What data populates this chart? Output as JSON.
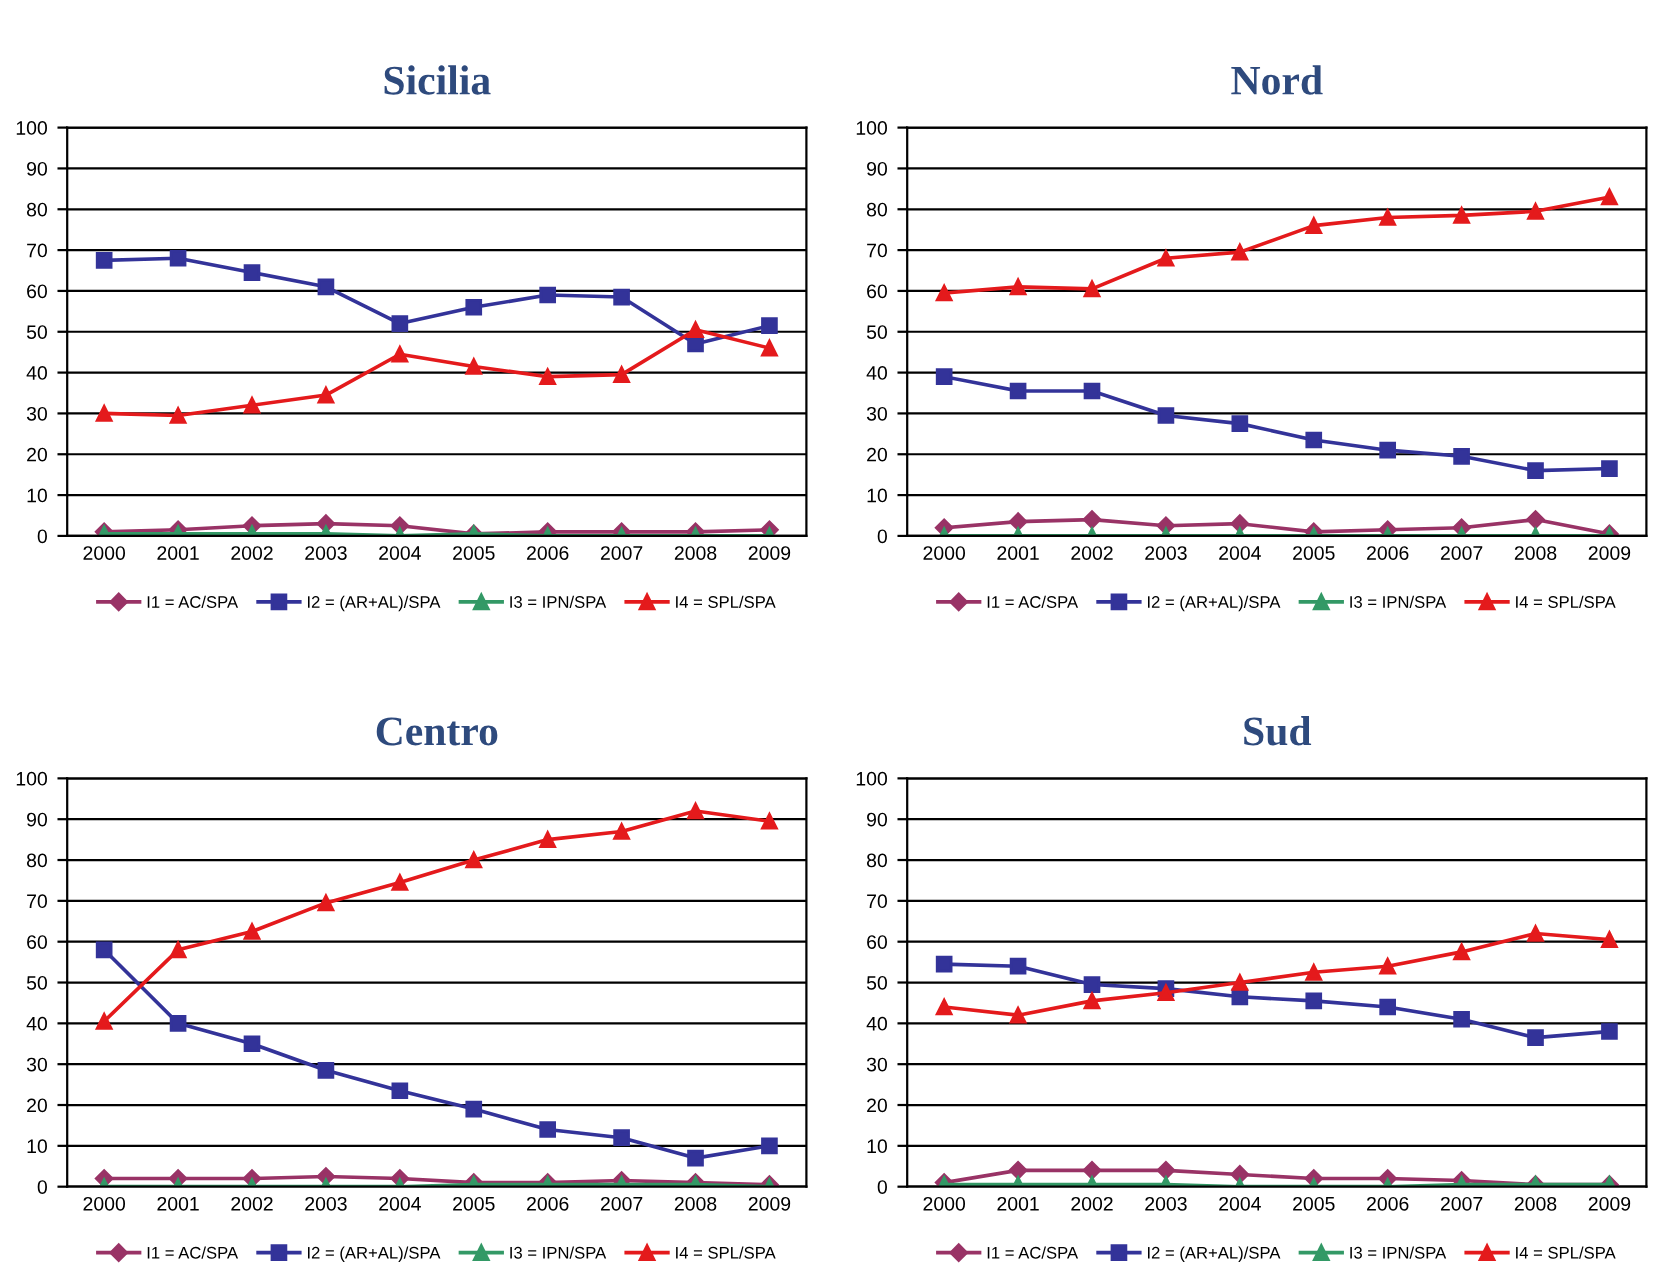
{
  "chart_data": [
    {
      "type": "line",
      "title": "Sicilia",
      "categories": [
        "2000",
        "2001",
        "2002",
        "2003",
        "2004",
        "2005",
        "2006",
        "2007",
        "2008",
        "2009"
      ],
      "ylim": [
        0,
        100
      ],
      "yticks": [
        0,
        10,
        20,
        30,
        40,
        50,
        60,
        70,
        80,
        90,
        100
      ],
      "grid": "y",
      "legend": "bottom",
      "series": [
        {
          "name": "I1 = AC/SPA",
          "color": "#993366",
          "marker": "diamond",
          "values": [
            1,
            1.5,
            2.5,
            3,
            2.5,
            0.5,
            1,
            1,
            1,
            1.5
          ]
        },
        {
          "name": "I2 = (AR+AL)/SPA",
          "color": "#333399",
          "marker": "square",
          "values": [
            67.5,
            68,
            64.5,
            61,
            52,
            56,
            59,
            58.5,
            47,
            51.5
          ]
        },
        {
          "name": "I3 = IPN/SPA",
          "color": "#339966",
          "marker": "triangle",
          "values": [
            0.5,
            0.5,
            0.5,
            0.5,
            0,
            0.5,
            0,
            0,
            0,
            0
          ]
        },
        {
          "name": "I4 = SPL/SPA",
          "color": "#e41a1c",
          "marker": "triangle",
          "values": [
            30,
            29.5,
            32,
            34.5,
            44.5,
            41.5,
            39,
            39.5,
            50.5,
            46
          ]
        }
      ]
    },
    {
      "type": "line",
      "title": "Nord",
      "categories": [
        "2000",
        "2001",
        "2002",
        "2003",
        "2004",
        "2005",
        "2006",
        "2007",
        "2008",
        "2009"
      ],
      "ylim": [
        0,
        100
      ],
      "yticks": [
        0,
        10,
        20,
        30,
        40,
        50,
        60,
        70,
        80,
        90,
        100
      ],
      "grid": "y",
      "legend": "bottom",
      "series": [
        {
          "name": "I1 = AC/SPA",
          "color": "#993366",
          "marker": "diamond",
          "values": [
            2,
            3.5,
            4,
            2.5,
            3,
            1,
            1.5,
            2,
            4,
            0.5
          ]
        },
        {
          "name": "I2 = (AR+AL)/SPA",
          "color": "#333399",
          "marker": "square",
          "values": [
            39,
            35.5,
            35.5,
            29.5,
            27.5,
            23.5,
            21,
            19.5,
            16,
            16.5
          ]
        },
        {
          "name": "I3 = IPN/SPA",
          "color": "#339966",
          "marker": "triangle",
          "values": [
            0,
            0,
            0,
            0,
            0,
            0,
            0,
            0,
            0,
            0
          ]
        },
        {
          "name": "I4 = SPL/SPA",
          "color": "#e41a1c",
          "marker": "triangle",
          "values": [
            59.5,
            61,
            60.5,
            68,
            69.5,
            76,
            78,
            78.5,
            79.5,
            83
          ]
        }
      ]
    },
    {
      "type": "line",
      "title": "Centro",
      "categories": [
        "2000",
        "2001",
        "2002",
        "2003",
        "2004",
        "2005",
        "2006",
        "2007",
        "2008",
        "2009"
      ],
      "ylim": [
        0,
        100
      ],
      "yticks": [
        0,
        10,
        20,
        30,
        40,
        50,
        60,
        70,
        80,
        90,
        100
      ],
      "grid": "y",
      "legend": "bottom",
      "series": [
        {
          "name": "I1 = AC/SPA",
          "color": "#993366",
          "marker": "diamond",
          "values": [
            2,
            2,
            2,
            2.5,
            2,
            1,
            1,
            1.5,
            1,
            0.5
          ]
        },
        {
          "name": "I2 = (AR+AL)/SPA",
          "color": "#333399",
          "marker": "square",
          "values": [
            58,
            40,
            35,
            28.5,
            23.5,
            19,
            14,
            12,
            7,
            10
          ]
        },
        {
          "name": "I3 = IPN/SPA",
          "color": "#339966",
          "marker": "triangle",
          "values": [
            0,
            0,
            0,
            0,
            0,
            0.5,
            0.5,
            0.5,
            0.5,
            0
          ]
        },
        {
          "name": "I4 = SPL/SPA",
          "color": "#e41a1c",
          "marker": "triangle",
          "values": [
            40.5,
            58,
            62.5,
            69.5,
            74.5,
            80,
            85,
            87,
            92,
            89.5
          ]
        }
      ]
    },
    {
      "type": "line",
      "title": "Sud",
      "categories": [
        "2000",
        "2001",
        "2002",
        "2003",
        "2004",
        "2005",
        "2006",
        "2007",
        "2008",
        "2009"
      ],
      "ylim": [
        0,
        100
      ],
      "yticks": [
        0,
        10,
        20,
        30,
        40,
        50,
        60,
        70,
        80,
        90,
        100
      ],
      "grid": "y",
      "legend": "bottom",
      "series": [
        {
          "name": "I1 = AC/SPA",
          "color": "#993366",
          "marker": "diamond",
          "values": [
            1,
            4,
            4,
            4,
            3,
            2,
            2,
            1.5,
            0.5,
            0.5
          ]
        },
        {
          "name": "I2 = (AR+AL)/SPA",
          "color": "#333399",
          "marker": "square",
          "values": [
            54.5,
            54,
            49.5,
            48.5,
            46.5,
            45.5,
            44,
            41,
            36.5,
            38
          ]
        },
        {
          "name": "I3 = IPN/SPA",
          "color": "#339966",
          "marker": "triangle",
          "values": [
            0.5,
            0.5,
            0.5,
            0.5,
            0,
            0,
            0,
            0.5,
            0.5,
            0.5
          ]
        },
        {
          "name": "I4 = SPL/SPA",
          "color": "#e41a1c",
          "marker": "triangle",
          "values": [
            44,
            42,
            45.5,
            47.5,
            50,
            52.5,
            54,
            57.5,
            62,
            60.5
          ]
        }
      ]
    }
  ]
}
